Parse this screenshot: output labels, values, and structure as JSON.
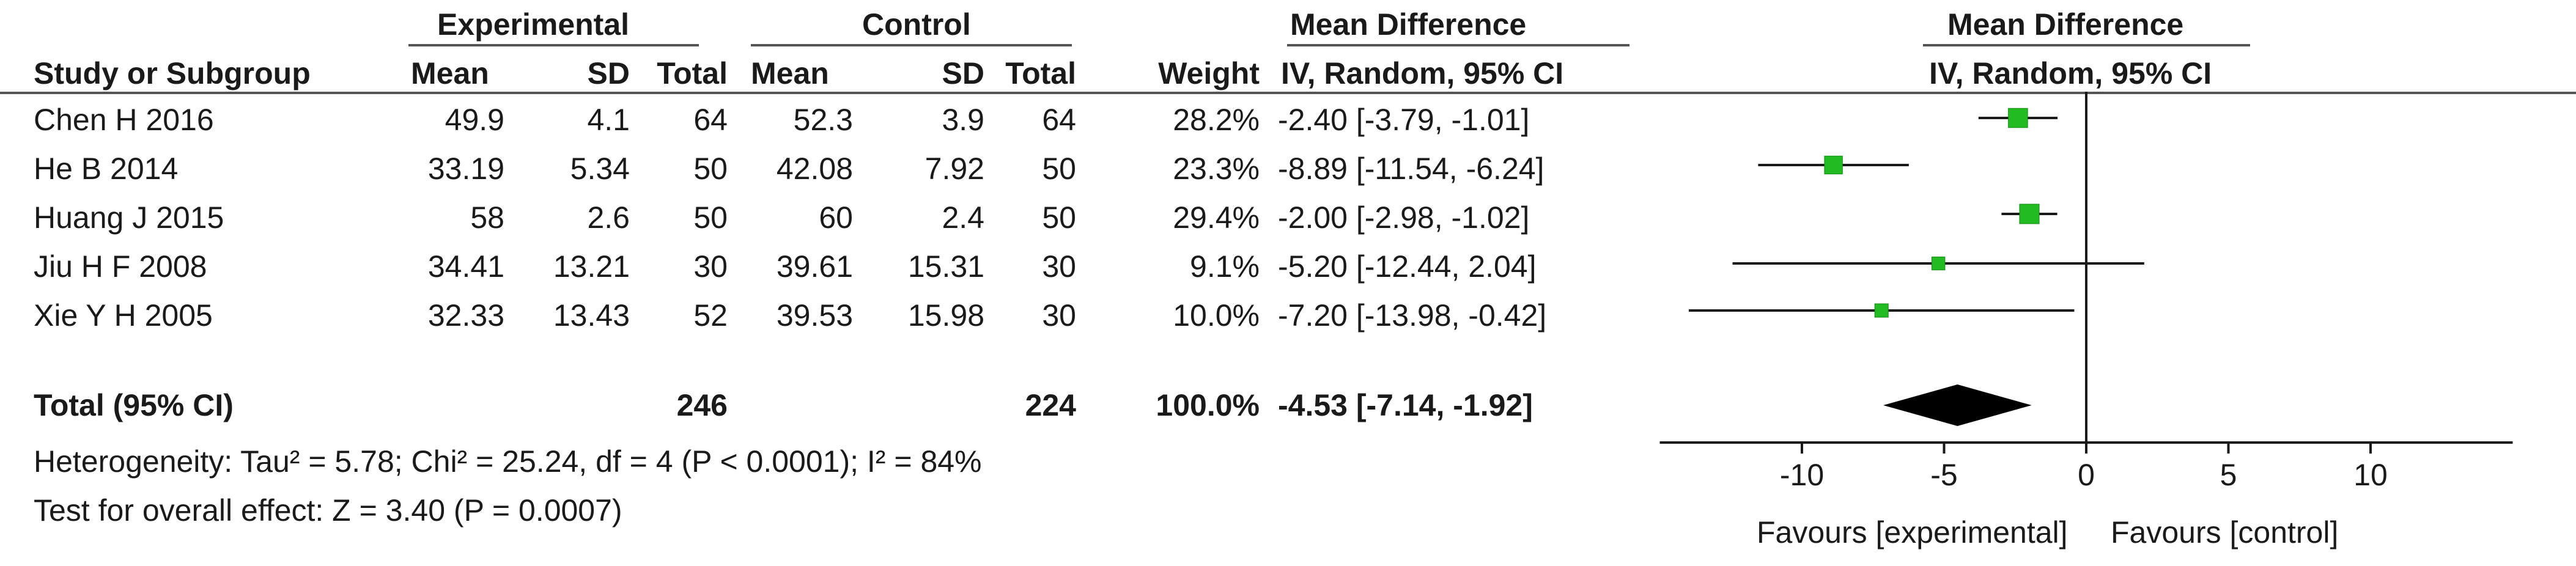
{
  "header": {
    "experimental_label": "Experimental",
    "control_label": "Control",
    "md_label_left": "Mean Difference",
    "md_label_right": "Mean Difference",
    "study_col": "Study or Subgroup",
    "mean_col": "Mean",
    "sd_col": "SD",
    "total_col": "Total",
    "weight_col": "Weight",
    "ci_col_left": "IV, Random, 95% CI",
    "ci_col_right": "IV, Random, 95% CI"
  },
  "studies": [
    {
      "name": "Chen H  2016",
      "exp_mean": "49.9",
      "exp_sd": "4.1",
      "exp_total": "64",
      "ctl_mean": "52.3",
      "ctl_sd": "3.9",
      "ctl_total": "64",
      "weight": "28.2%",
      "ci_text": "-2.40 [-3.79, -1.01]"
    },
    {
      "name": "He B  2014",
      "exp_mean": "33.19",
      "exp_sd": "5.34",
      "exp_total": "50",
      "ctl_mean": "42.08",
      "ctl_sd": "7.92",
      "ctl_total": "50",
      "weight": "23.3%",
      "ci_text": "-8.89 [-11.54, -6.24]"
    },
    {
      "name": "Huang J 2015",
      "exp_mean": "58",
      "exp_sd": "2.6",
      "exp_total": "50",
      "ctl_mean": "60",
      "ctl_sd": "2.4",
      "ctl_total": "50",
      "weight": "29.4%",
      "ci_text": "-2.00 [-2.98, -1.02]"
    },
    {
      "name": "Jiu H F 2008",
      "exp_mean": "34.41",
      "exp_sd": "13.21",
      "exp_total": "30",
      "ctl_mean": "39.61",
      "ctl_sd": "15.31",
      "ctl_total": "30",
      "weight": "9.1%",
      "ci_text": "-5.20 [-12.44, 2.04]"
    },
    {
      "name": "Xie Y H  2005",
      "exp_mean": "32.33",
      "exp_sd": "13.43",
      "exp_total": "52",
      "ctl_mean": "39.53",
      "ctl_sd": "15.98",
      "ctl_total": "30",
      "weight": "10.0%",
      "ci_text": "-7.20 [-13.98, -0.42]"
    }
  ],
  "total": {
    "label": "Total (95% CI)",
    "exp_total": "246",
    "ctl_total": "224",
    "weight": "100.0%",
    "ci_text": "-4.53 [-7.14, -1.92]"
  },
  "heterogeneity": "Heterogeneity: Tau² = 5.78; Chi² = 25.24, df = 4 (P < 0.0001); I² = 84%",
  "overall_effect": "Test for overall effect: Z = 3.40 (P = 0.0007)",
  "chart_data": {
    "type": "forest",
    "xlim": [
      -15,
      15
    ],
    "xticks": [
      -10,
      -5,
      0,
      5,
      10
    ],
    "xtick_labels": [
      "-10",
      "-5",
      "0",
      "5",
      "10"
    ],
    "favours_left": "Favours [experimental]",
    "favours_right": "Favours [control]",
    "studies": [
      {
        "md": -2.4,
        "lower": -3.79,
        "upper": -1.01,
        "weight": 28.2
      },
      {
        "md": -8.89,
        "lower": -11.54,
        "upper": -6.24,
        "weight": 23.3
      },
      {
        "md": -2.0,
        "lower": -2.98,
        "upper": -1.02,
        "weight": 29.4
      },
      {
        "md": -5.2,
        "lower": -12.44,
        "upper": 2.04,
        "weight": 9.1
      },
      {
        "md": -7.2,
        "lower": -13.98,
        "upper": -0.42,
        "weight": 10.0
      }
    ],
    "pooled": {
      "md": -4.53,
      "lower": -7.14,
      "upper": -1.92
    },
    "marker_color": "#22bb22"
  }
}
